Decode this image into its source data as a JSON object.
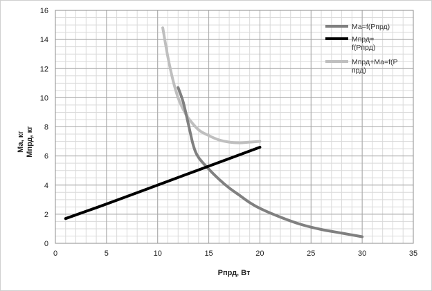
{
  "chart_data": {
    "type": "line",
    "xlabel": "Рпрд, Вт",
    "ylabel_line1": "Ма, кг",
    "ylabel_line2": "Мпрд, кг",
    "xlim": [
      0,
      35
    ],
    "ylim": [
      0,
      16
    ],
    "x_ticks": [
      0,
      5,
      10,
      15,
      20,
      25,
      30,
      35
    ],
    "y_ticks": [
      0,
      2,
      4,
      6,
      8,
      10,
      12,
      14,
      16
    ],
    "grid": true,
    "minor_grid": true,
    "legend_position": "top-right",
    "series": [
      {
        "name": "Ма=f(Рпрд)",
        "legend_lines": [
          "Ма=f(Рпрд)"
        ],
        "color": "#808080",
        "points": [
          [
            12,
            10.7
          ],
          [
            12.5,
            9.7
          ],
          [
            13,
            8.2
          ],
          [
            13.5,
            6.7
          ],
          [
            14,
            5.9
          ],
          [
            15,
            5.1
          ],
          [
            16,
            4.4
          ],
          [
            17,
            3.8
          ],
          [
            18,
            3.3
          ],
          [
            19,
            2.8
          ],
          [
            20,
            2.4
          ],
          [
            22,
            1.8
          ],
          [
            24,
            1.3
          ],
          [
            26,
            0.95
          ],
          [
            28,
            0.7
          ],
          [
            30,
            0.45
          ]
        ]
      },
      {
        "name": "Мпрд=f(Рпрд)",
        "legend_lines": [
          "Мпрд=",
          "f(Рпрд)"
        ],
        "color": "#000000",
        "points": [
          [
            1,
            1.7
          ],
          [
            5,
            2.7
          ],
          [
            10,
            4.0
          ],
          [
            15,
            5.3
          ],
          [
            20,
            6.6
          ]
        ]
      },
      {
        "name": "Мпрд+Ма=f(Рпрд)",
        "legend_lines": [
          "Мпрд+Ма=f(Р",
          "прд)"
        ],
        "color": "#bfbfbf",
        "points": [
          [
            10.5,
            14.8
          ],
          [
            11,
            12.8
          ],
          [
            11.5,
            11.2
          ],
          [
            12,
            10.0
          ],
          [
            12.5,
            9.2
          ],
          [
            13,
            8.6
          ],
          [
            14,
            7.8
          ],
          [
            15,
            7.4
          ],
          [
            16,
            7.1
          ],
          [
            17,
            6.95
          ],
          [
            18,
            6.9
          ],
          [
            19,
            6.95
          ],
          [
            20,
            7.0
          ]
        ]
      }
    ]
  }
}
